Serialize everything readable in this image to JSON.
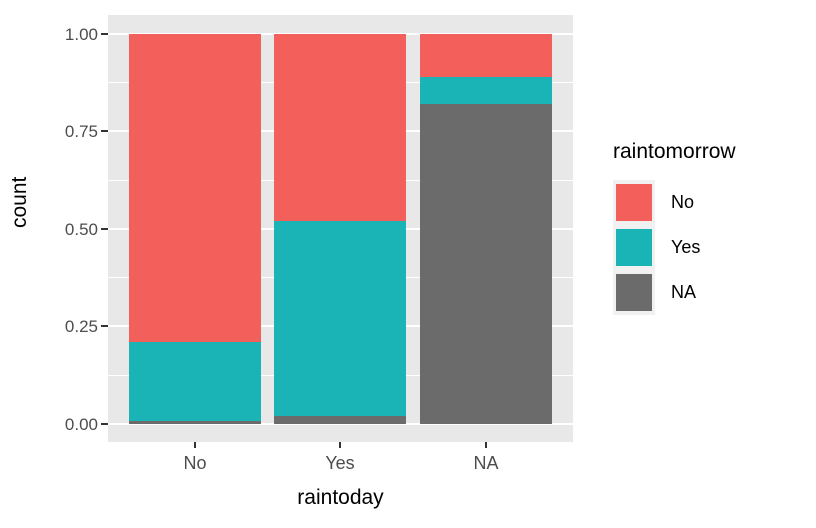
{
  "chart_data": {
    "type": "bar",
    "stacked": true,
    "normalized": true,
    "title": "",
    "xlabel": "raintoday",
    "ylabel": "count",
    "categories": [
      "No",
      "Yes",
      "NA"
    ],
    "stack_order_bottom_to_top": [
      "NA",
      "Yes",
      "No"
    ],
    "series": [
      {
        "name": "No",
        "color": "#F3605C",
        "values": [
          0.79,
          0.48,
          0.11
        ]
      },
      {
        "name": "Yes",
        "color": "#1AB4B6",
        "values": [
          0.203,
          0.5,
          0.07
        ]
      },
      {
        "name": "NA",
        "color": "#6B6B6B",
        "values": [
          0.007,
          0.02,
          0.82
        ]
      }
    ],
    "ylim": [
      0,
      1
    ],
    "y_ticks": [
      {
        "value": 0.0,
        "label": "0.00"
      },
      {
        "value": 0.25,
        "label": "0.25"
      },
      {
        "value": 0.5,
        "label": "0.50"
      },
      {
        "value": 0.75,
        "label": "0.75"
      },
      {
        "value": 1.0,
        "label": "1.00"
      }
    ],
    "y_minor_ticks": [
      0.125,
      0.375,
      0.625,
      0.875
    ],
    "grid": true,
    "legend": {
      "title": "raintomorrow",
      "position": "right",
      "entries": [
        {
          "label": "No",
          "color": "#F3605C"
        },
        {
          "label": "Yes",
          "color": "#1AB4B6"
        },
        {
          "label": "NA",
          "color": "#6B6B6B"
        }
      ]
    },
    "colors": {
      "panel_background": "#E8E8E8",
      "gridline": "#FFFFFF",
      "tick": "#333333",
      "tick_label": "#4D4D4D",
      "axis_title": "#000000",
      "legend_key_background": "#F1F1F1"
    }
  }
}
